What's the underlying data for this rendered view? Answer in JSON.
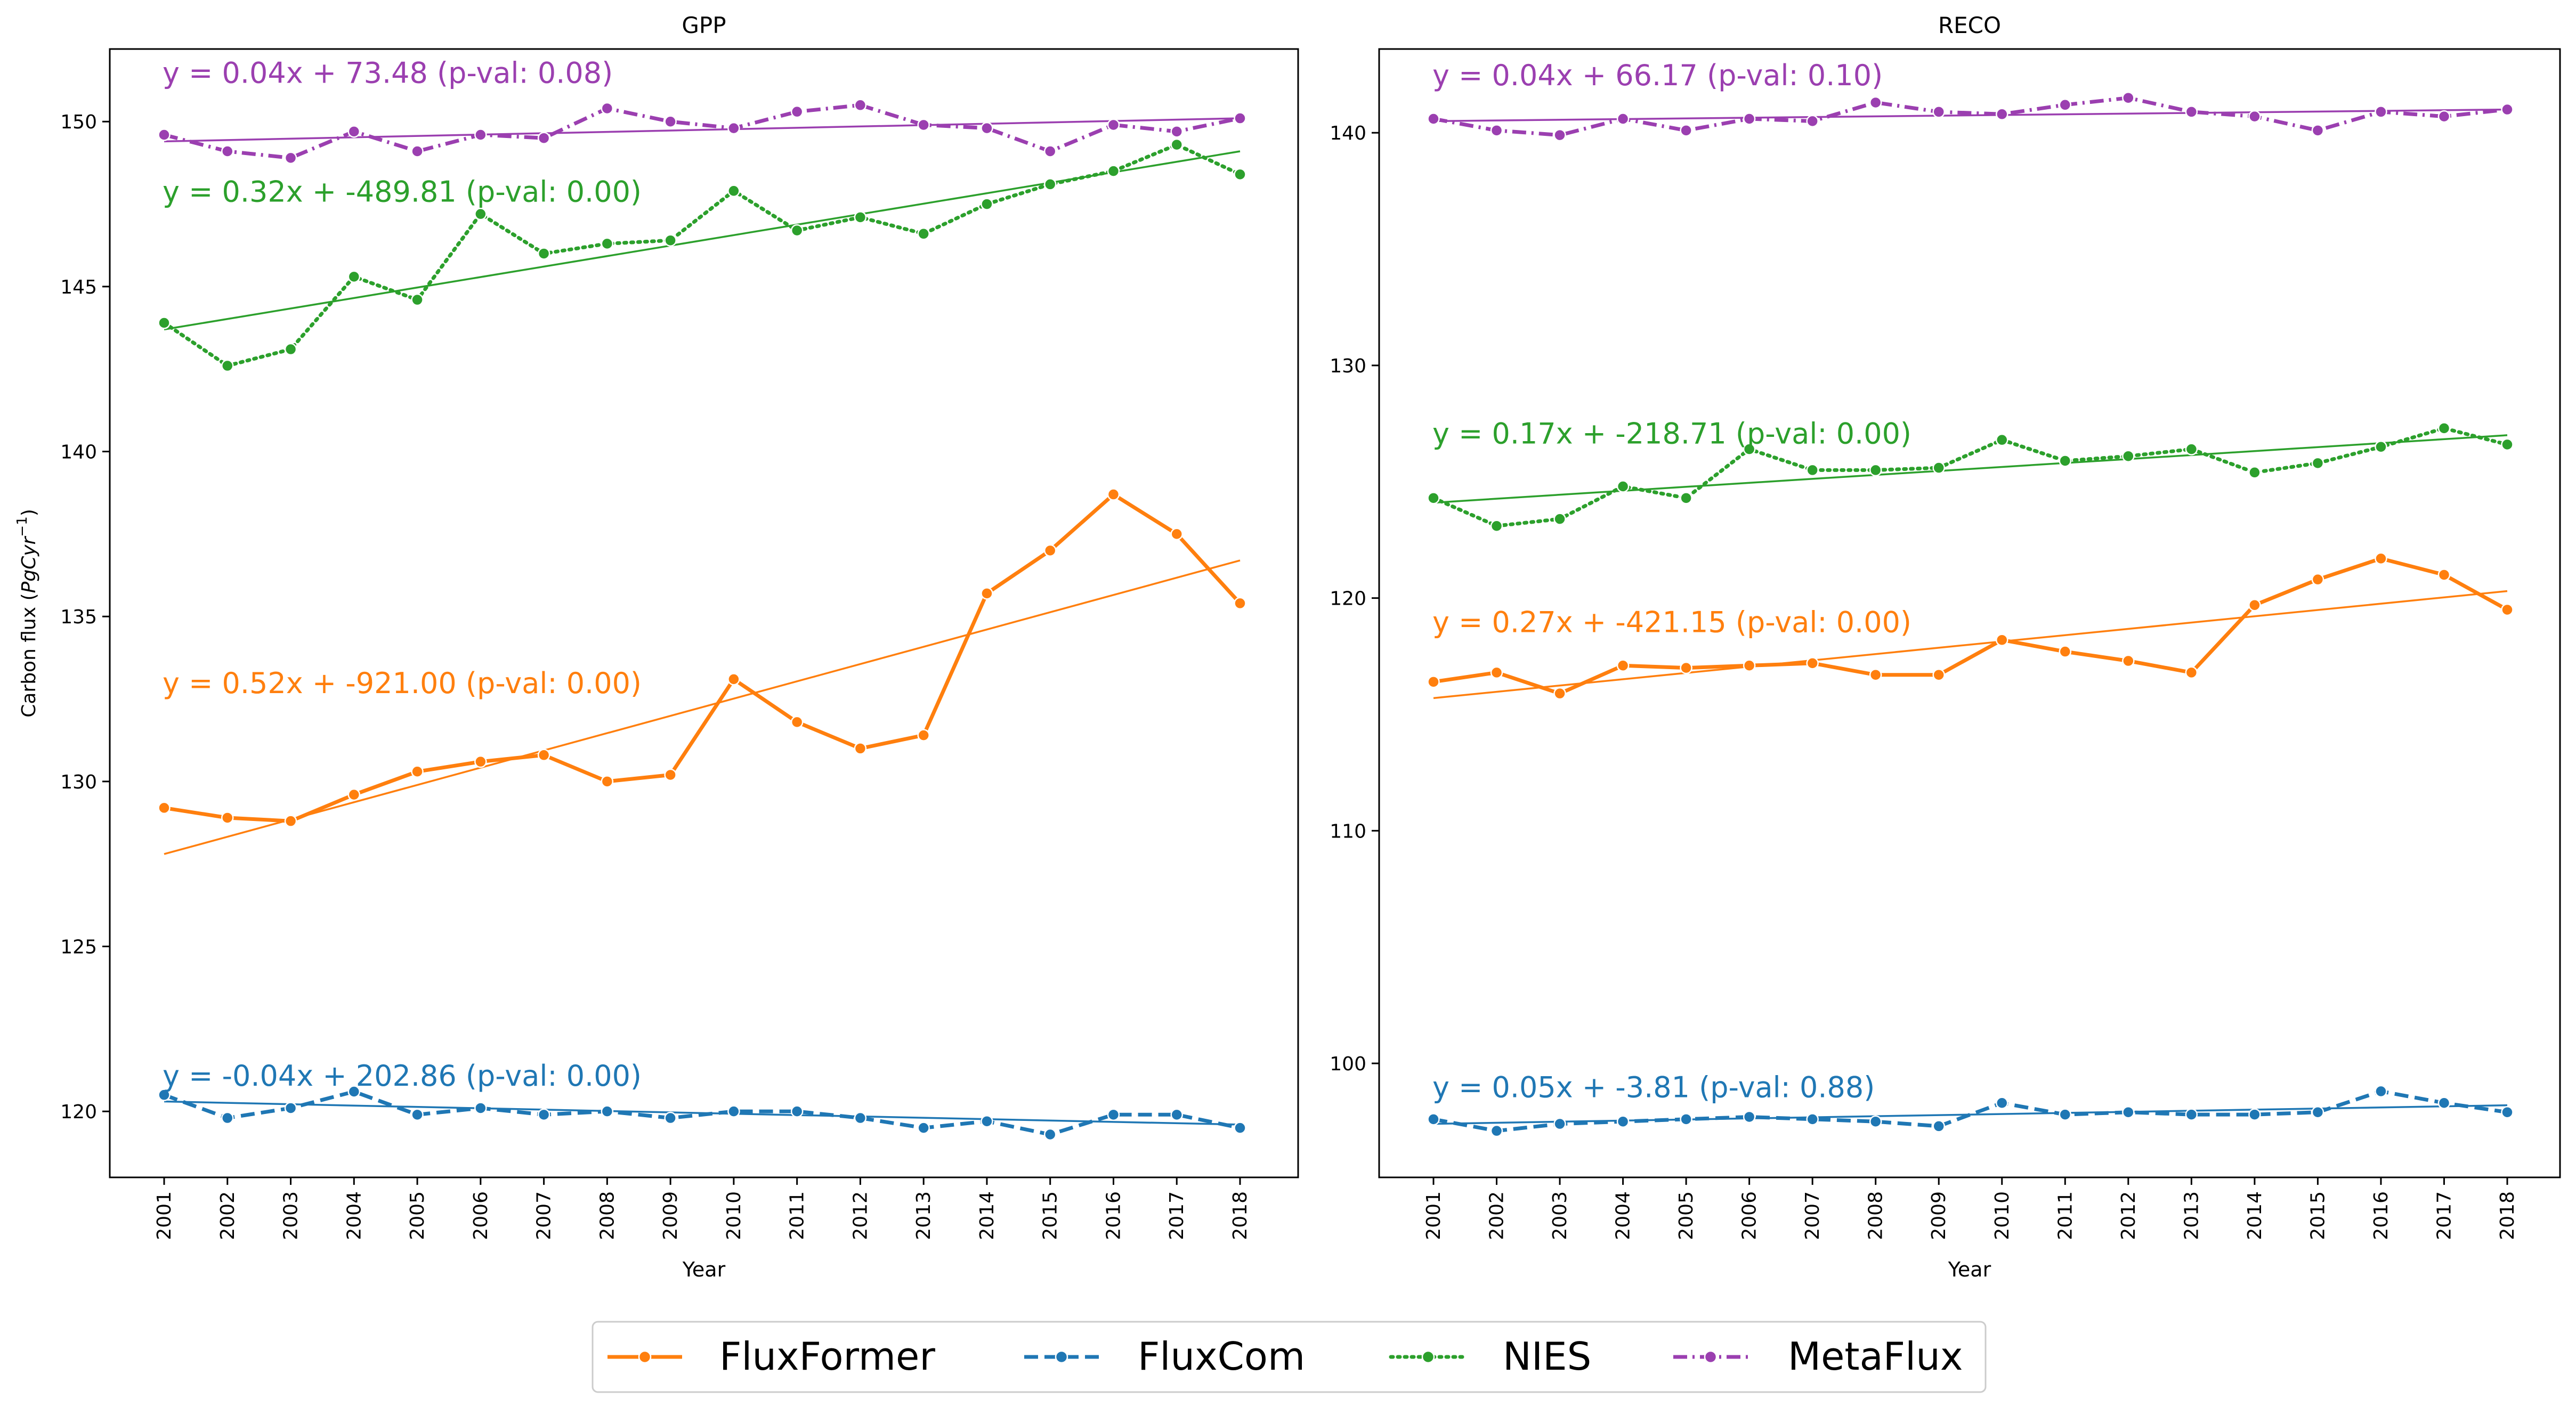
{
  "figure": {
    "ylabel_main": "Carbon flux (",
    "ylabel_unit": "PgCyr",
    "ylabel_exp": "−1",
    "ylabel_close": ")"
  },
  "years": [
    2001,
    2002,
    2003,
    2004,
    2005,
    2006,
    2007,
    2008,
    2009,
    2010,
    2011,
    2012,
    2013,
    2014,
    2015,
    2016,
    2017,
    2018
  ],
  "styles": {
    "FluxFormer": {
      "color": "#ff7f0e",
      "dash": "solid"
    },
    "FluxCom": {
      "color": "#1f77b4",
      "dash": "dashed"
    },
    "NIES": {
      "color": "#2ca02c",
      "dash": "dotted"
    },
    "MetaFlux": {
      "color": "#9b3fb0",
      "dash": "dashdot"
    }
  },
  "legend": {
    "placement": "bottom-center",
    "items": [
      "FluxFormer",
      "FluxCom",
      "NIES",
      "MetaFlux"
    ]
  },
  "chart_data": [
    {
      "type": "line",
      "title": "GPP",
      "xlabel": "Year",
      "ylabel": "Carbon flux (PgCyr−1)",
      "ylim": [
        118.0,
        152.2
      ],
      "yticks": [
        120,
        125,
        130,
        135,
        140,
        145,
        150
      ],
      "grid": false,
      "x": [
        2001,
        2002,
        2003,
        2004,
        2005,
        2006,
        2007,
        2008,
        2009,
        2010,
        2011,
        2012,
        2013,
        2014,
        2015,
        2016,
        2017,
        2018
      ],
      "series": [
        {
          "name": "FluxFormer",
          "values": [
            129.2,
            128.9,
            128.8,
            129.6,
            130.3,
            130.6,
            130.8,
            130.0,
            130.2,
            133.1,
            131.8,
            131.0,
            131.4,
            135.7,
            137.0,
            138.7,
            137.5,
            135.4
          ],
          "fit": {
            "start": 127.8,
            "end": 136.7,
            "equation": "y = 0.52x + -921.00 (p-val: 0.00)",
            "label_y": 133.0
          }
        },
        {
          "name": "FluxCom",
          "values": [
            120.5,
            119.8,
            120.1,
            120.6,
            119.9,
            120.1,
            119.9,
            120.0,
            119.8,
            120.0,
            120.0,
            119.8,
            119.5,
            119.7,
            119.3,
            119.9,
            119.9,
            119.5
          ],
          "fit": {
            "start": 120.3,
            "end": 119.6,
            "equation": "y = -0.04x + 202.86 (p-val: 0.00)",
            "label_y": 121.1
          }
        },
        {
          "name": "NIES",
          "values": [
            143.9,
            142.6,
            143.1,
            145.3,
            144.6,
            147.2,
            146.0,
            146.3,
            146.4,
            147.9,
            146.7,
            147.1,
            146.6,
            147.5,
            148.1,
            148.5,
            149.3,
            148.4
          ],
          "fit": {
            "start": 143.7,
            "end": 149.1,
            "equation": "y = 0.32x + -489.81 (p-val: 0.00)",
            "label_y": 147.9
          }
        },
        {
          "name": "MetaFlux",
          "values": [
            149.6,
            149.1,
            148.9,
            149.7,
            149.1,
            149.6,
            149.5,
            150.4,
            150.0,
            149.8,
            150.3,
            150.5,
            149.9,
            149.8,
            149.1,
            149.9,
            149.7,
            150.1
          ],
          "fit": {
            "start": 149.4,
            "end": 150.1,
            "equation": "y = 0.04x + 73.48 (p-val: 0.08)",
            "label_y": 151.5
          }
        }
      ]
    },
    {
      "type": "line",
      "title": "RECO",
      "xlabel": "Year",
      "ylabel": "",
      "ylim": [
        95.1,
        143.6
      ],
      "yticks": [
        100,
        110,
        120,
        130,
        140
      ],
      "grid": false,
      "x": [
        2001,
        2002,
        2003,
        2004,
        2005,
        2006,
        2007,
        2008,
        2009,
        2010,
        2011,
        2012,
        2013,
        2014,
        2015,
        2016,
        2017,
        2018
      ],
      "series": [
        {
          "name": "FluxFormer",
          "values": [
            116.4,
            116.8,
            115.9,
            117.1,
            117.0,
            117.1,
            117.2,
            116.7,
            116.7,
            118.2,
            117.7,
            117.3,
            116.8,
            119.7,
            120.8,
            121.7,
            121.0,
            119.5
          ],
          "fit": {
            "start": 115.7,
            "end": 120.3,
            "equation": "y = 0.27x + -421.15 (p-val: 0.00)",
            "label_y": 119.0
          }
        },
        {
          "name": "FluxCom",
          "values": [
            97.6,
            97.1,
            97.4,
            97.5,
            97.6,
            97.7,
            97.6,
            97.5,
            97.3,
            98.3,
            97.8,
            97.9,
            97.8,
            97.8,
            97.9,
            98.8,
            98.3,
            97.9
          ],
          "fit": {
            "start": 97.4,
            "end": 98.2,
            "equation": "y = 0.05x + -3.81 (p-val: 0.88)",
            "label_y": 99.0
          }
        },
        {
          "name": "NIES",
          "values": [
            124.3,
            123.1,
            123.4,
            124.8,
            124.3,
            126.4,
            125.5,
            125.5,
            125.6,
            126.8,
            125.9,
            126.1,
            126.4,
            125.4,
            125.8,
            126.5,
            127.3,
            126.6
          ],
          "fit": {
            "start": 124.1,
            "end": 127.0,
            "equation": "y = 0.17x + -218.71 (p-val: 0.00)",
            "label_y": 127.1
          }
        },
        {
          "name": "MetaFlux",
          "values": [
            140.6,
            140.1,
            139.9,
            140.6,
            140.1,
            140.6,
            140.5,
            141.3,
            140.9,
            140.8,
            141.2,
            141.5,
            140.9,
            140.7,
            140.1,
            140.9,
            140.7,
            141.0
          ],
          "fit": {
            "start": 140.5,
            "end": 141.0,
            "equation": "y = 0.04x + 66.17 (p-val: 0.10)",
            "label_y": 142.5
          }
        }
      ]
    }
  ]
}
